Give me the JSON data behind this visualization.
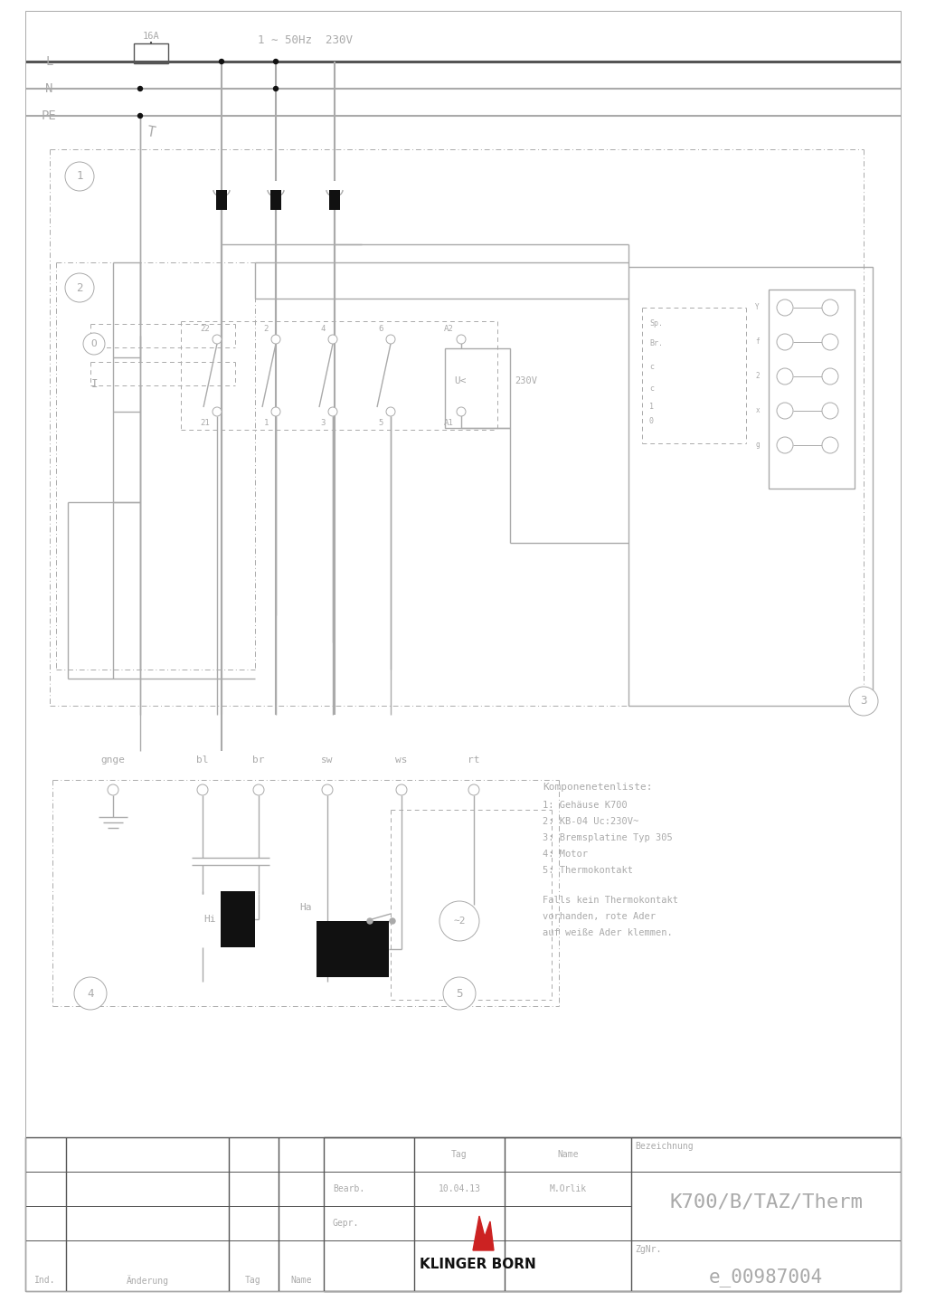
{
  "bg_color": "#ffffff",
  "lc": "#aaaaaa",
  "dc": "#555555",
  "tc": "#aaaaaa",
  "black": "#111111",
  "title": "K700/B/TAZ/Therm",
  "zgnr": "e_00987004",
  "company": "KLINGER BORN",
  "bezeichnung": "Bezeichnung",
  "bearb_label": "Bearb.",
  "gepr_label": "Gepr.",
  "tag_label": "Tag",
  "name_label": "Name",
  "date": "10.04.13",
  "author": "M.Orlik",
  "ind_label": "Ind.",
  "aenderung_label": "Änderung",
  "zgnr_label": "ZgNr.",
  "power_label": "1 ∼ 50Hz  230V",
  "fuse_label": "16A",
  "L_label": "L",
  "N_label": "N",
  "PE_label": "PE",
  "voltage_label": "U<  230V",
  "component_list_title": "Komponenetenliste:",
  "component_list": [
    "1: Gehäuse K700",
    "2: KB-04 Uc:230V~",
    "3: Bremsplatine Typ 305",
    "4: Motor",
    "5: Thermokontakt"
  ],
  "note_text": "Falls kein Thermokontakt\nvorhanden, rote Ader\nauf weiße Ader klemmen.",
  "wire_labels": [
    "gnge",
    "bl",
    "br",
    "sw",
    "ws",
    "rt"
  ],
  "Hi_label": "Hi",
  "Ha_label": "Ha"
}
